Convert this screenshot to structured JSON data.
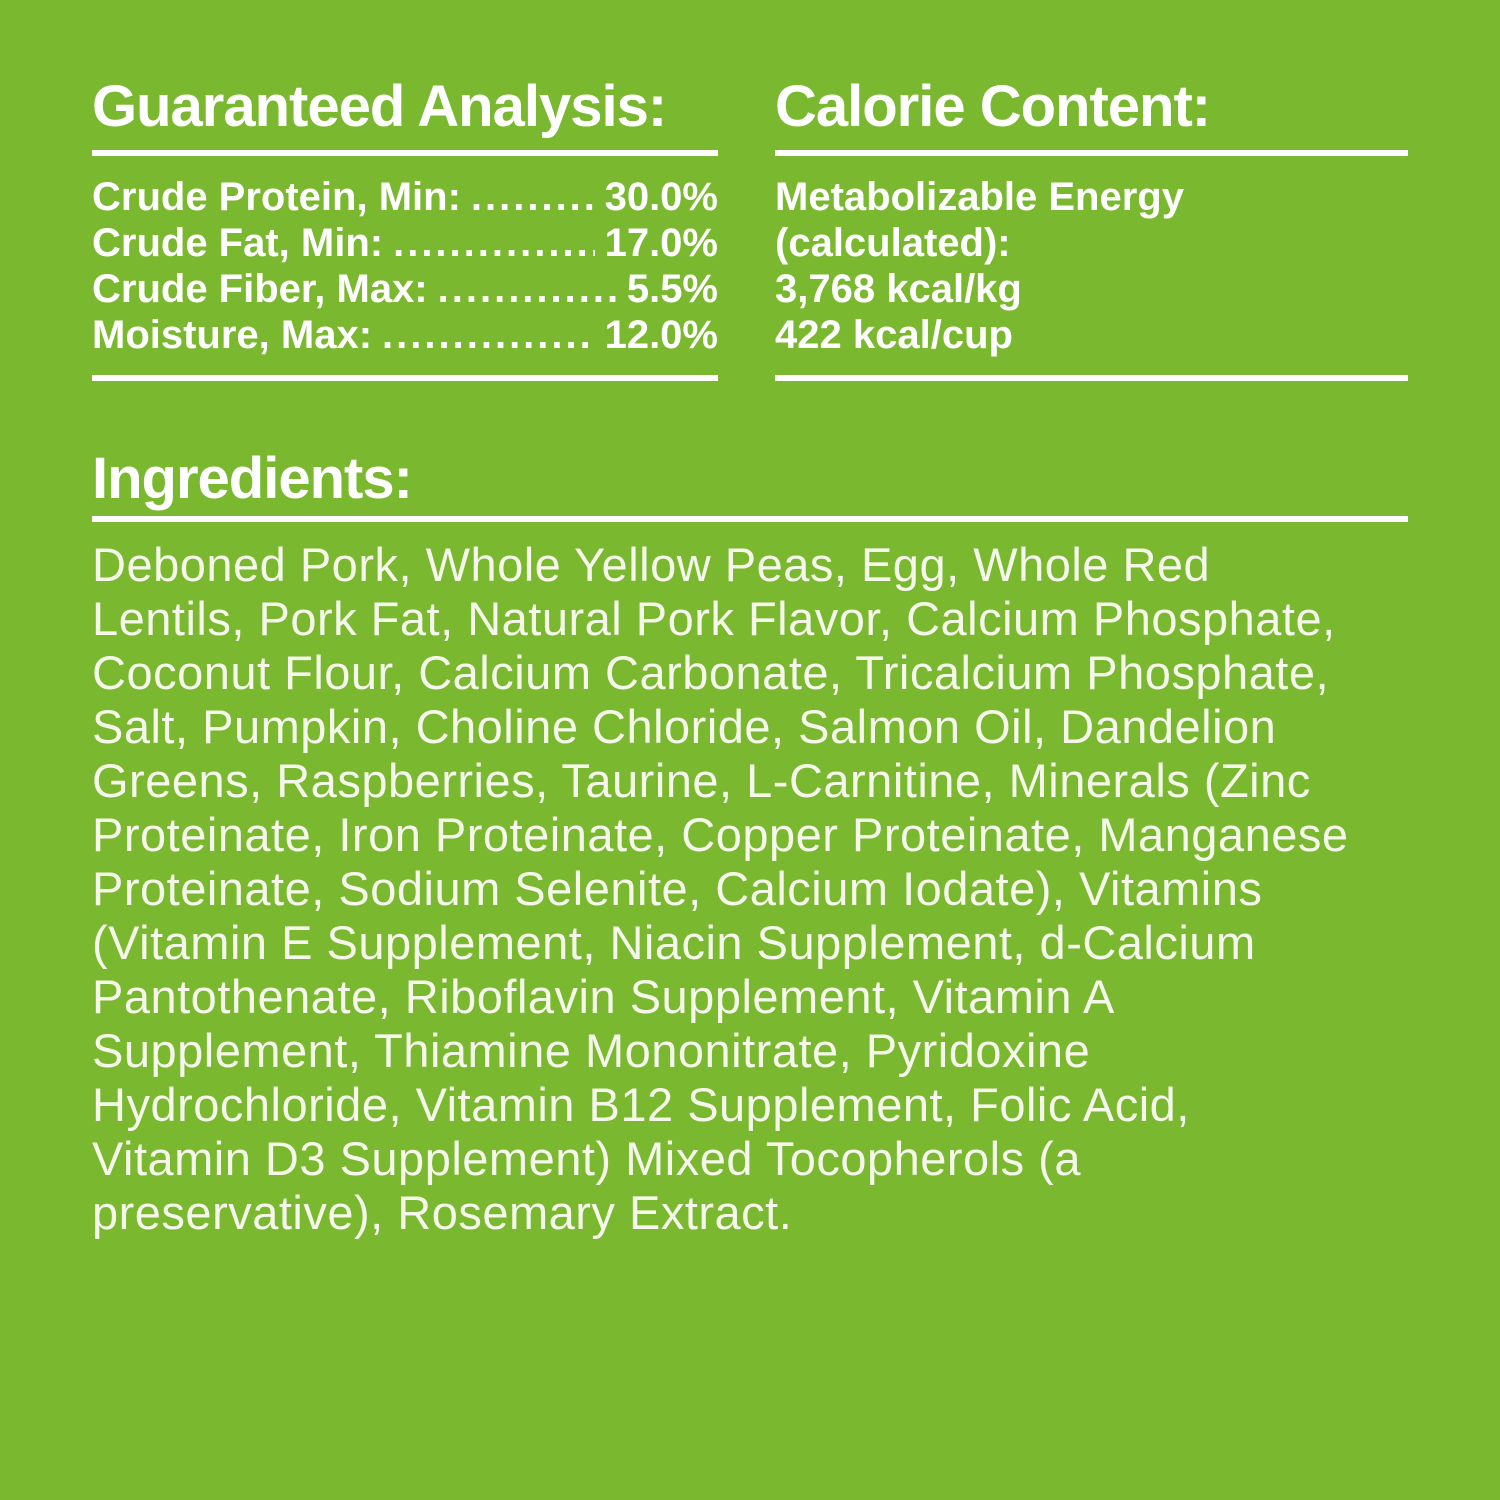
{
  "page": {
    "background_color": "#7ab82f",
    "heading_text_color": "#ffffff",
    "body_text_color": "#f4f7ea"
  },
  "guaranteed_analysis": {
    "title": "Guaranteed Analysis:",
    "leader_dots": "....................................................",
    "rows": [
      {
        "label": "Crude Protein, Min:",
        "value": "30.0%"
      },
      {
        "label": "Crude Fat, Min:",
        "value": "17.0%"
      },
      {
        "label": "Crude Fiber, Max:",
        "value": "5.5%"
      },
      {
        "label": "Moisture, Max:",
        "value": "12.0%"
      }
    ]
  },
  "calorie_content": {
    "title": "Calorie Content:",
    "lines": [
      "Metabolizable Energy",
      "(calculated):",
      "3,768 kcal/kg",
      "422 kcal/cup"
    ]
  },
  "ingredients": {
    "title": "Ingredients:",
    "lines": [
      "Deboned Pork, Whole Yellow Peas, Egg, Whole Red",
      "Lentils, Pork Fat, Natural Pork Flavor, Calcium Phosphate,",
      "Coconut Flour, Calcium Carbonate, Tricalcium Phosphate,",
      "Salt, Pumpkin, Choline Chloride, Salmon Oil, Dandelion",
      "Greens, Raspberries, Taurine, L-Carnitine, Minerals (Zinc",
      "Proteinate, Iron Proteinate, Copper Proteinate, Manganese",
      "Proteinate, Sodium Selenite, Calcium Iodate), Vitamins",
      "(Vitamin E Supplement, Niacin Supplement, d-Calcium",
      "Pantothenate, Riboflavin Supplement, Vitamin A",
      "Supplement, Thiamine Mononitrate, Pyridoxine",
      "Hydrochloride, Vitamin B12 Supplement, Folic Acid,",
      "Vitamin D3 Supplement) Mixed Tocopherols (a",
      "preservative), Rosemary Extract."
    ]
  }
}
